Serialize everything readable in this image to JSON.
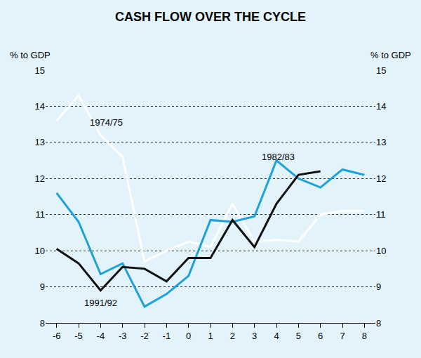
{
  "chart_data": {
    "type": "line",
    "title": "CASH FLOW OVER THE CYCLE",
    "ylabel": "% to GDP",
    "y2label": "% to GDP",
    "x": [
      -6,
      -5,
      -4,
      -3,
      -2,
      -1,
      0,
      1,
      2,
      3,
      4,
      5,
      6,
      7,
      8
    ],
    "series": [
      {
        "name": "1974/75",
        "color": "#ffffff",
        "values": [
          13.6,
          14.3,
          13.2,
          12.6,
          9.7,
          10.0,
          10.25,
          10.1,
          11.3,
          10.25,
          10.3,
          10.25,
          11.0,
          11.1,
          11.1
        ]
      },
      {
        "name": "1982/83",
        "color": "#1da1db",
        "values": [
          11.6,
          10.8,
          9.35,
          9.65,
          8.45,
          8.8,
          9.3,
          10.85,
          10.8,
          10.95,
          12.5,
          12.0,
          11.75,
          12.25,
          12.1
        ]
      },
      {
        "name": "1991/92",
        "color": "#111111",
        "values": [
          10.05,
          9.65,
          8.9,
          9.55,
          9.5,
          9.15,
          9.8,
          9.8,
          10.85,
          10.1,
          11.3,
          12.1,
          12.2,
          null,
          null
        ]
      }
    ],
    "xlim": [
      -6.5,
      8.5
    ],
    "xticks": [
      -6,
      -5,
      -4,
      -3,
      -2,
      -1,
      0,
      1,
      2,
      3,
      4,
      5,
      6,
      7,
      8
    ],
    "ylim": [
      8,
      15
    ],
    "yticks": [
      8,
      9,
      10,
      11,
      12,
      13,
      14,
      15
    ],
    "y2lim": [
      8,
      15
    ],
    "y2ticks": [
      8,
      9,
      10,
      11,
      12,
      13,
      14,
      15
    ],
    "grid": true
  }
}
